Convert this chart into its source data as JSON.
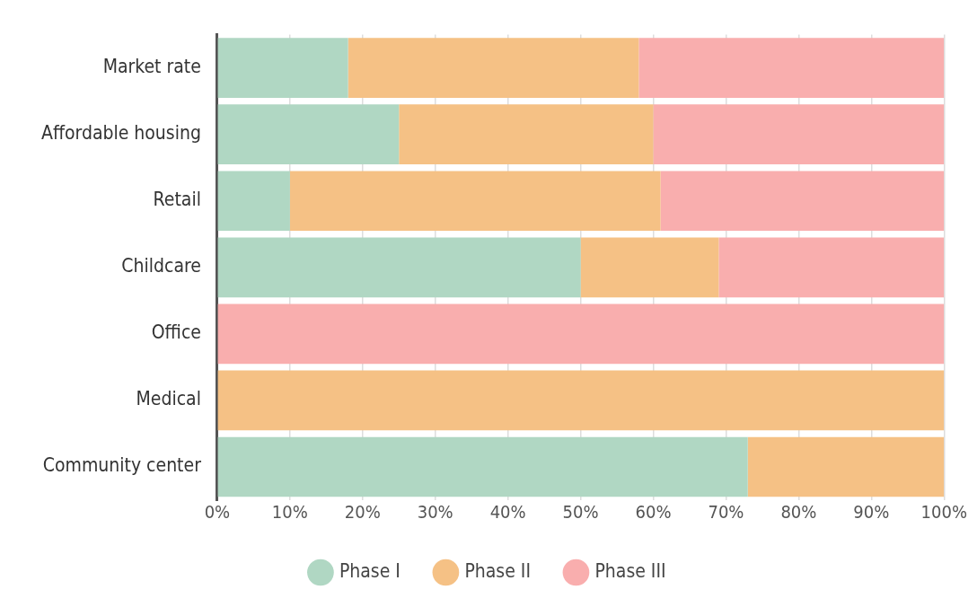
{
  "chart_data": {
    "type": "bar",
    "orientation": "horizontal",
    "stacked": true,
    "categories": [
      "Market rate",
      "Affordable housing",
      "Retail",
      "Childcare",
      "Office",
      "Medical",
      "Community center"
    ],
    "series": [
      {
        "name": "Phase I",
        "color": "#b0d7c3",
        "values": [
          18,
          25,
          10,
          50,
          0,
          0,
          73
        ]
      },
      {
        "name": "Phase II",
        "color": "#f5c185",
        "values": [
          40,
          35,
          51,
          19,
          0,
          100,
          27
        ]
      },
      {
        "name": "Phase III",
        "color": "#f9aeae",
        "values": [
          42,
          40,
          39,
          31,
          100,
          0,
          0
        ]
      }
    ],
    "xlim": [
      0,
      100
    ],
    "xticks": [
      {
        "value": 0,
        "label": "0%"
      },
      {
        "value": 10,
        "label": "10%"
      },
      {
        "value": 20,
        "label": "20%"
      },
      {
        "value": 30,
        "label": "30%"
      },
      {
        "value": 40,
        "label": "40%"
      },
      {
        "value": 50,
        "label": "50%"
      },
      {
        "value": 60,
        "label": "60%"
      },
      {
        "value": 70,
        "label": "70%"
      },
      {
        "value": 80,
        "label": "80%"
      },
      {
        "value": 90,
        "label": "90%"
      },
      {
        "value": 100,
        "label": "100%"
      }
    ],
    "grid": "x",
    "legend": "bottom",
    "marker": "circle"
  }
}
